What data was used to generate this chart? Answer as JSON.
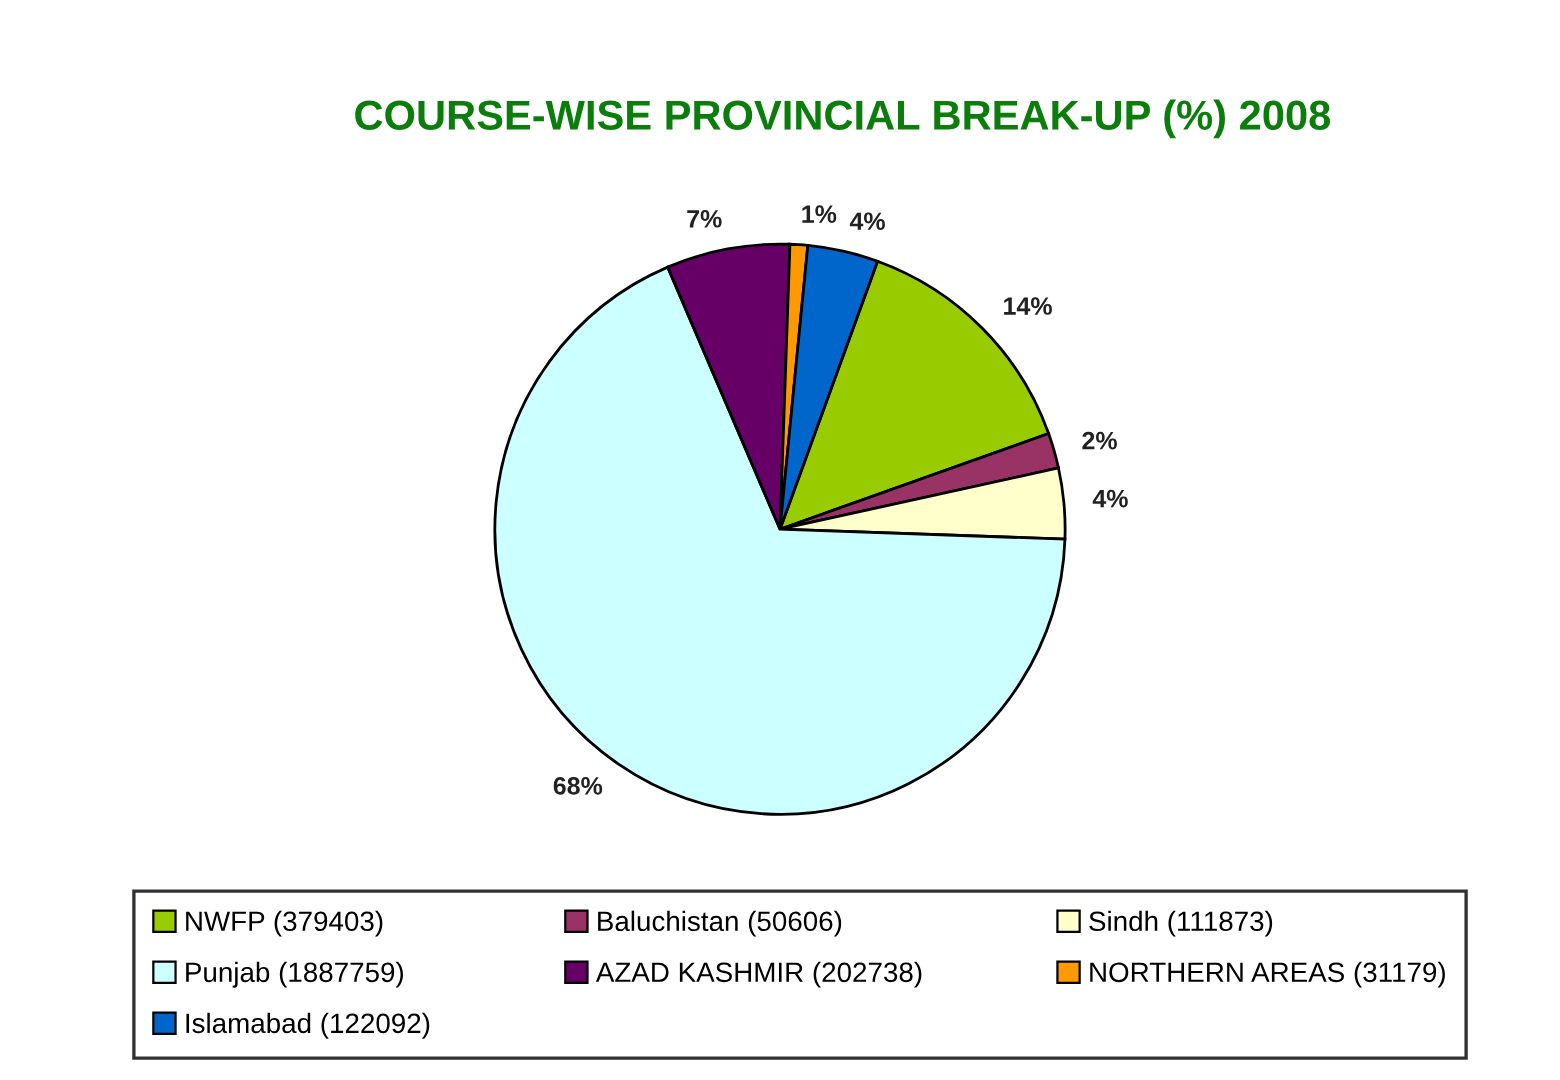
{
  "chart_data": {
    "type": "pie",
    "title": "COURSE-WISE PROVINCIAL BREAK-UP (%) 2008",
    "categories": [
      "NWFP (379403)",
      "Baluchistan (50606)",
      "Sindh (111873)",
      "Punjab (1887759)",
      "AZAD KASHMIR (202738)",
      "NORTHERN AREAS (31179)",
      "Islamabad (122092)"
    ],
    "values": [
      14,
      2,
      4,
      68,
      7,
      1,
      4
    ],
    "colors": [
      "#99cc00",
      "#993366",
      "#ffffcc",
      "#ccffff",
      "#660066",
      "#ff9900",
      "#0066cc"
    ],
    "value_labels": [
      "14%",
      "2%",
      "4%",
      "68%",
      "7%",
      "1%",
      "4%"
    ],
    "legend": "bottom"
  }
}
